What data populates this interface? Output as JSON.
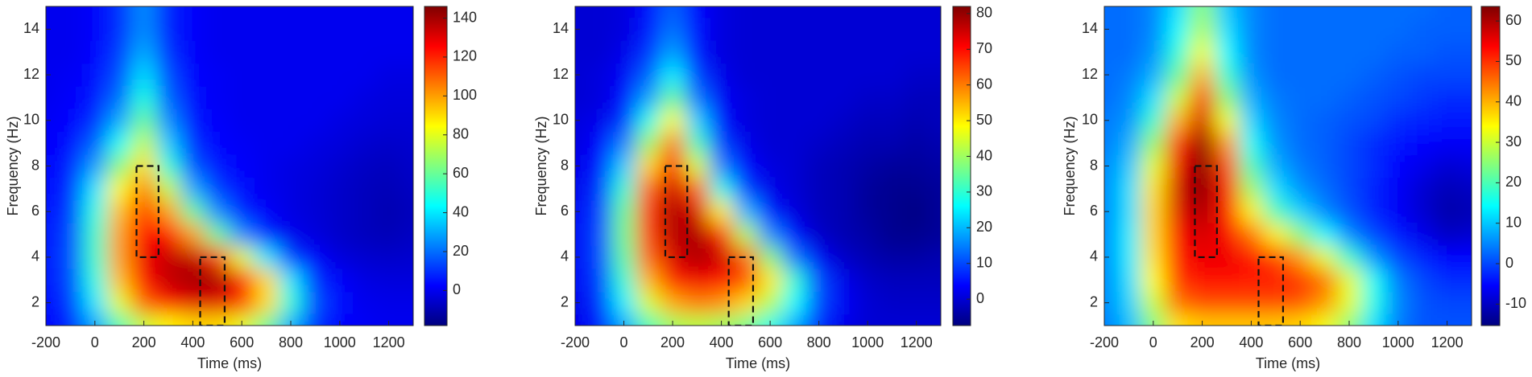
{
  "chart_data": [
    {
      "type": "heatmap",
      "xlabel": "Time (ms)",
      "ylabel": "Frequency (Hz)",
      "colormap": "jet",
      "x": [
        -200,
        -100,
        0,
        100,
        200,
        300,
        400,
        500,
        600,
        700,
        800,
        900,
        1000,
        1100,
        1200,
        1300
      ],
      "y": [
        1,
        2,
        3,
        4,
        5,
        6,
        7,
        8,
        9,
        10,
        11,
        12,
        13,
        14,
        15
      ],
      "z": [
        [
          2,
          8,
          28,
          55,
          75,
          85,
          90,
          90,
          80,
          60,
          30,
          10,
          3,
          1,
          0,
          0
        ],
        [
          3,
          12,
          40,
          80,
          110,
          125,
          130,
          130,
          115,
          90,
          50,
          15,
          4,
          0,
          -1,
          -1
        ],
        [
          4,
          14,
          48,
          95,
          125,
          135,
          140,
          140,
          125,
          90,
          40,
          10,
          2,
          -2,
          -3,
          -3
        ],
        [
          4,
          15,
          52,
          100,
          128,
          135,
          135,
          115,
          80,
          40,
          12,
          2,
          -3,
          -5,
          -6,
          -5
        ],
        [
          4,
          14,
          52,
          100,
          125,
          125,
          100,
          60,
          25,
          8,
          0,
          -3,
          -6,
          -8,
          -9,
          -7
        ],
        [
          4,
          12,
          48,
          95,
          115,
          100,
          60,
          25,
          8,
          2,
          -2,
          -4,
          -6,
          -8,
          -10,
          -8
        ],
        [
          3,
          10,
          40,
          85,
          105,
          75,
          30,
          12,
          4,
          0,
          -2,
          -4,
          -6,
          -8,
          -9,
          -7
        ],
        [
          2,
          8,
          28,
          65,
          90,
          50,
          16,
          6,
          2,
          0,
          -2,
          -3,
          -5,
          -7,
          -8,
          -6
        ],
        [
          2,
          5,
          18,
          45,
          75,
          35,
          10,
          3,
          1,
          0,
          0,
          -2,
          -3,
          -5,
          -6,
          -5
        ],
        [
          1,
          3,
          10,
          30,
          60,
          25,
          6,
          2,
          0,
          0,
          0,
          0,
          -2,
          -3,
          -4,
          -4
        ],
        [
          0,
          2,
          6,
          20,
          48,
          18,
          4,
          1,
          0,
          0,
          0,
          0,
          0,
          -2,
          -3,
          -3
        ],
        [
          0,
          1,
          4,
          15,
          38,
          14,
          3,
          1,
          0,
          0,
          0,
          0,
          0,
          0,
          -2,
          -2
        ],
        [
          0,
          0,
          3,
          12,
          30,
          10,
          2,
          0,
          0,
          0,
          0,
          0,
          0,
          0,
          0,
          0
        ],
        [
          0,
          0,
          2,
          10,
          25,
          8,
          2,
          0,
          0,
          0,
          0,
          0,
          0,
          0,
          0,
          0
        ],
        [
          0,
          0,
          2,
          10,
          25,
          8,
          2,
          0,
          0,
          0,
          0,
          0,
          0,
          0,
          0,
          0
        ]
      ],
      "xlim": [
        -200,
        1300
      ],
      "ylim": [
        1,
        15
      ],
      "xticks": [
        -200,
        0,
        200,
        400,
        600,
        800,
        1000,
        1200
      ],
      "yticks": [
        2,
        4,
        6,
        8,
        10,
        12,
        14
      ],
      "clim": [
        -18,
        146
      ],
      "cticks": [
        0,
        20,
        40,
        60,
        80,
        100,
        120,
        140
      ],
      "rois": [
        {
          "x": [
            170,
            260
          ],
          "y": [
            4,
            8
          ]
        },
        {
          "x": [
            430,
            530
          ],
          "y": [
            1,
            4
          ]
        }
      ]
    },
    {
      "type": "heatmap",
      "xlabel": "Time (ms)",
      "ylabel": "Frequency (Hz)",
      "colormap": "jet",
      "x": [
        -200,
        -100,
        0,
        100,
        200,
        300,
        400,
        500,
        600,
        700,
        800,
        900,
        1000,
        1100,
        1200,
        1300
      ],
      "y": [
        1,
        2,
        3,
        4,
        5,
        6,
        7,
        8,
        9,
        10,
        11,
        12,
        13,
        14,
        15
      ],
      "z": [
        [
          2,
          6,
          18,
          32,
          40,
          42,
          40,
          36,
          28,
          18,
          7,
          2,
          0,
          0,
          0,
          0
        ],
        [
          2,
          8,
          25,
          45,
          56,
          60,
          58,
          52,
          42,
          26,
          10,
          3,
          0,
          -1,
          -1,
          -1
        ],
        [
          3,
          9,
          30,
          55,
          68,
          72,
          70,
          64,
          50,
          30,
          10,
          2,
          -1,
          -2,
          -2,
          -2
        ],
        [
          3,
          10,
          34,
          62,
          74,
          78,
          75,
          62,
          38,
          14,
          3,
          -1,
          -3,
          -4,
          -4,
          -3
        ],
        [
          3,
          10,
          36,
          65,
          77,
          78,
          68,
          42,
          16,
          4,
          -1,
          -3,
          -4,
          -6,
          -6,
          -5
        ],
        [
          3,
          9,
          35,
          66,
          78,
          74,
          50,
          20,
          6,
          1,
          -2,
          -3,
          -5,
          -6,
          -7,
          -5
        ],
        [
          2,
          8,
          30,
          62,
          75,
          62,
          28,
          9,
          2,
          0,
          -2,
          -3,
          -5,
          -6,
          -6,
          -5
        ],
        [
          2,
          6,
          22,
          52,
          70,
          45,
          15,
          4,
          1,
          0,
          -2,
          -3,
          -4,
          -5,
          -5,
          -4
        ],
        [
          1,
          4,
          15,
          40,
          60,
          32,
          9,
          2,
          0,
          0,
          -1,
          -2,
          -3,
          -3,
          -4,
          -3
        ],
        [
          1,
          2,
          8,
          28,
          48,
          22,
          5,
          1,
          0,
          0,
          0,
          -1,
          -2,
          -2,
          -3,
          -2
        ],
        [
          0,
          1,
          5,
          18,
          35,
          14,
          3,
          1,
          0,
          0,
          0,
          0,
          -1,
          -1,
          -2,
          -2
        ],
        [
          0,
          1,
          3,
          12,
          25,
          9,
          2,
          0,
          0,
          0,
          0,
          0,
          0,
          0,
          -1,
          -1
        ],
        [
          0,
          0,
          2,
          8,
          18,
          6,
          1,
          0,
          0,
          0,
          0,
          0,
          0,
          0,
          0,
          0
        ],
        [
          0,
          0,
          1,
          6,
          14,
          5,
          1,
          0,
          0,
          0,
          0,
          0,
          0,
          0,
          0,
          0
        ],
        [
          0,
          0,
          1,
          5,
          12,
          4,
          1,
          0,
          0,
          0,
          0,
          0,
          0,
          0,
          0,
          0
        ]
      ],
      "xlim": [
        -200,
        1300
      ],
      "ylim": [
        1,
        15
      ],
      "xticks": [
        -200,
        0,
        200,
        400,
        600,
        800,
        1000,
        1200
      ],
      "yticks": [
        2,
        4,
        6,
        8,
        10,
        12,
        14
      ],
      "clim": [
        -7.4,
        82
      ],
      "cticks": [
        0,
        10,
        20,
        30,
        40,
        50,
        60,
        70,
        80
      ],
      "rois": [
        {
          "x": [
            170,
            260
          ],
          "y": [
            4,
            8
          ]
        },
        {
          "x": [
            430,
            530
          ],
          "y": [
            1,
            4
          ]
        }
      ]
    },
    {
      "type": "heatmap",
      "xlabel": "Time (ms)",
      "ylabel": "Frequency (Hz)",
      "colormap": "jet",
      "x": [
        -200,
        -100,
        0,
        100,
        200,
        300,
        400,
        500,
        600,
        700,
        800,
        900,
        1000,
        1100,
        1200,
        1300
      ],
      "y": [
        1,
        2,
        3,
        4,
        5,
        6,
        7,
        8,
        9,
        10,
        11,
        12,
        13,
        14,
        15
      ],
      "z": [
        [
          4,
          9,
          24,
          36,
          38,
          38,
          38,
          38,
          37,
          33,
          25,
          12,
          4,
          1,
          1,
          1
        ],
        [
          5,
          11,
          30,
          45,
          48,
          48,
          48,
          48,
          47,
          42,
          32,
          16,
          5,
          1,
          0,
          0
        ],
        [
          5,
          12,
          34,
          50,
          53,
          53,
          52,
          52,
          50,
          45,
          32,
          15,
          4,
          0,
          -2,
          -2
        ],
        [
          5,
          13,
          36,
          52,
          55,
          55,
          52,
          48,
          42,
          32,
          18,
          6,
          0,
          -3,
          -5,
          -5
        ],
        [
          5,
          13,
          37,
          54,
          57,
          54,
          45,
          35,
          25,
          14,
          5,
          0,
          -4,
          -7,
          -10,
          -9
        ],
        [
          5,
          12,
          37,
          56,
          60,
          52,
          35,
          20,
          11,
          5,
          1,
          -3,
          -6,
          -9,
          -12,
          -11
        ],
        [
          5,
          12,
          36,
          57,
          63,
          52,
          27,
          12,
          6,
          3,
          0,
          -3,
          -6,
          -9,
          -11,
          -10
        ],
        [
          5,
          10,
          32,
          55,
          63,
          48,
          20,
          8,
          4,
          2,
          0,
          -2,
          -5,
          -7,
          -9,
          -8
        ],
        [
          4,
          8,
          26,
          50,
          62,
          42,
          15,
          6,
          3,
          2,
          0,
          -2,
          -4,
          -5,
          -6,
          -6
        ],
        [
          4,
          6,
          18,
          40,
          57,
          33,
          11,
          5,
          3,
          2,
          1,
          0,
          -2,
          -3,
          -4,
          -4
        ],
        [
          3,
          5,
          12,
          30,
          50,
          25,
          8,
          4,
          3,
          3,
          2,
          1,
          0,
          -1,
          -2,
          -2
        ],
        [
          3,
          4,
          8,
          22,
          40,
          18,
          6,
          3,
          3,
          3,
          3,
          2,
          1,
          0,
          0,
          0
        ],
        [
          3,
          3,
          6,
          17,
          33,
          14,
          5,
          3,
          3,
          3,
          3,
          3,
          2,
          2,
          1,
          1
        ],
        [
          3,
          3,
          5,
          14,
          28,
          12,
          5,
          3,
          3,
          3,
          3,
          3,
          3,
          2,
          2,
          2
        ],
        [
          3,
          3,
          5,
          12,
          25,
          10,
          5,
          3,
          3,
          3,
          3,
          3,
          3,
          3,
          2,
          2
        ]
      ],
      "xlim": [
        -200,
        1300
      ],
      "ylim": [
        1,
        15
      ],
      "xticks": [
        -200,
        0,
        200,
        400,
        600,
        800,
        1000,
        1200
      ],
      "yticks": [
        2,
        4,
        6,
        8,
        10,
        12,
        14
      ],
      "clim": [
        -15.3,
        63.6
      ],
      "cticks": [
        -10,
        0,
        10,
        20,
        30,
        40,
        50,
        60
      ],
      "rois": [
        {
          "x": [
            170,
            260
          ],
          "y": [
            4,
            8
          ]
        },
        {
          "x": [
            430,
            530
          ],
          "y": [
            1,
            4
          ]
        }
      ]
    }
  ]
}
